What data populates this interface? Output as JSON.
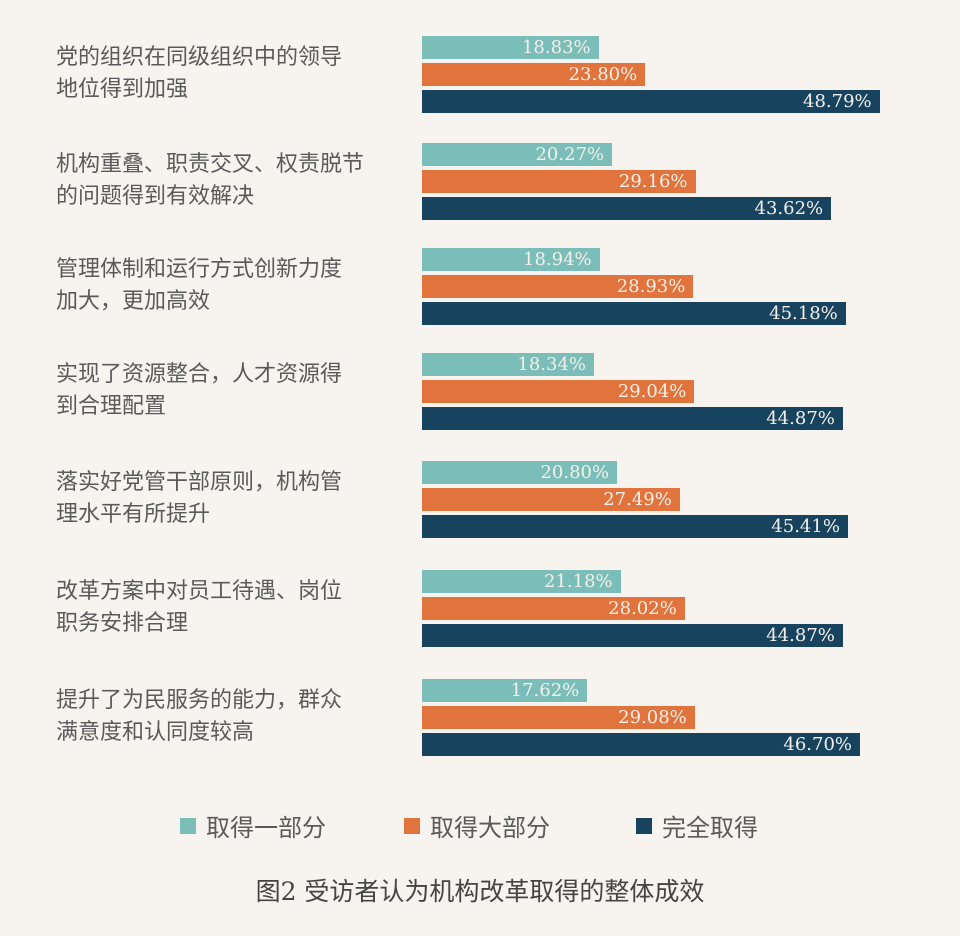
{
  "chart_data": {
    "type": "bar",
    "orientation": "horizontal",
    "title": "",
    "caption": "图2 受访者认为机构改革取得的整体成效",
    "categories": [
      "党的组织在同级组织中的领导地位得到加强",
      "机构重叠、职责交叉、权责脱节的问题得到有效解决",
      "管理体制和运行方式创新力度加大，更加高效",
      "实现了资源整合，人才资源得到合理配置",
      "落实好党管干部原则，机构管理水平有所提升",
      "改革方案中对员工待遇、岗位职务安排合理",
      "提升了为民服务的能力，群众满意度和认同度较高"
    ],
    "series": [
      {
        "name": "取得一部分",
        "color": "#7bbdb8",
        "values": [
          18.83,
          20.27,
          18.94,
          18.34,
          20.8,
          21.18,
          17.62
        ]
      },
      {
        "name": "取得大部分",
        "color": "#e0743c",
        "values": [
          23.8,
          29.16,
          28.93,
          29.04,
          27.49,
          28.02,
          29.08
        ]
      },
      {
        "name": "完全取得",
        "color": "#18435f",
        "values": [
          48.79,
          43.62,
          45.18,
          44.87,
          45.41,
          44.87,
          46.7
        ]
      }
    ],
    "value_labels": true,
    "value_format": "percent_2dp",
    "legend_position": "bottom",
    "grid": false,
    "xlabel": "",
    "ylabel": ""
  },
  "labels": [
    [
      "党的组织在同级组织中的领导",
      "地位得到加强"
    ],
    [
      "机构重叠、职责交叉、权责脱节",
      "的问题得到有效解决"
    ],
    [
      "管理体制和运行方式创新力度",
      "加大，更加高效"
    ],
    [
      "实现了资源整合，人才资源得",
      "到合理配置"
    ],
    [
      "落实好党管干部原则，机构管",
      "理水平有所提升"
    ],
    [
      "改革方案中对员工待遇、岗位",
      "职务安排合理"
    ],
    [
      "提升了为民服务的能力，群众",
      "满意度和认同度较高"
    ]
  ],
  "value_text": [
    [
      "18.83%",
      "23.80%",
      "48.79%"
    ],
    [
      "20.27%",
      "29.16%",
      "43.62%"
    ],
    [
      "18.94%",
      "28.93%",
      "45.18%"
    ],
    [
      "18.34%",
      "29.04%",
      "44.87%"
    ],
    [
      "20.80%",
      "27.49%",
      "45.41%"
    ],
    [
      "21.18%",
      "28.02%",
      "44.87%"
    ],
    [
      "17.62%",
      "29.08%",
      "46.70%"
    ]
  ],
  "legend": [
    "取得一部分",
    "取得大部分",
    "完全取得"
  ]
}
